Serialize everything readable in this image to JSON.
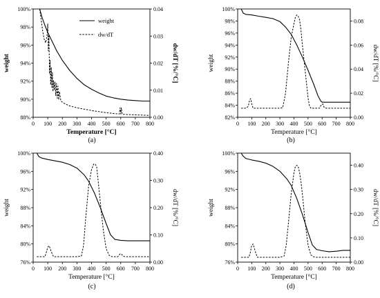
{
  "chart_data": [
    {
      "type": "line",
      "panel_label": "(a)",
      "xlabel": "Temperature [°C]",
      "ylabel": "weight",
      "y2label": "dw/dT [%/°C]",
      "xlim": [
        0,
        800
      ],
      "xticks": [
        0,
        100,
        200,
        300,
        400,
        500,
        600,
        700,
        800
      ],
      "ylim": [
        88,
        100
      ],
      "yticks": [
        88,
        90,
        92,
        94,
        96,
        98,
        100
      ],
      "ytick_suffix": "%",
      "y2lim": [
        0,
        0.04
      ],
      "y2ticks": [
        0,
        0.01,
        0.02,
        0.03,
        0.04
      ],
      "y2decimals": 2,
      "bold_labels": true,
      "legend": {
        "position": "top-right",
        "weight_label": "weight",
        "rate_label": "dw/dT"
      },
      "series": [
        {
          "name": "weight",
          "axis": "left",
          "style": "solid",
          "x": [
            45,
            60,
            80,
            100,
            130,
            160,
            200,
            250,
            300,
            350,
            400,
            450,
            500,
            550,
            600,
            650,
            700,
            750,
            800
          ],
          "y": [
            100,
            99.1,
            98.2,
            97.4,
            96.4,
            95.4,
            94.3,
            93.2,
            92.3,
            91.6,
            91.1,
            90.7,
            90.35,
            90.15,
            90.0,
            89.9,
            89.85,
            89.8,
            89.8
          ]
        },
        {
          "name": "dw/dT",
          "axis": "right",
          "style": "dashed",
          "x": [
            45,
            55,
            65,
            75,
            85,
            95,
            100,
            104,
            108,
            112,
            116,
            120,
            124,
            128,
            132,
            136,
            140,
            145,
            150,
            155,
            160,
            165,
            170,
            175,
            180,
            190,
            210,
            250,
            300,
            350,
            400,
            450,
            500,
            550,
            590,
            596,
            600,
            604,
            610,
            650,
            700,
            750,
            800
          ],
          "y": [
            0.04,
            0.036,
            0.032,
            0.029,
            0.0275,
            0.03,
            0.0345,
            0.0245,
            0.0305,
            0.016,
            0.021,
            0.012,
            0.0185,
            0.011,
            0.0165,
            0.0095,
            0.0135,
            0.01,
            0.013,
            0.008,
            0.0125,
            0.007,
            0.0115,
            0.0065,
            0.0095,
            0.006,
            0.0052,
            0.0042,
            0.0035,
            0.003,
            0.0025,
            0.0021,
            0.0017,
            0.0014,
            0.0012,
            0.0035,
            0.0012,
            0.0035,
            0.0011,
            0.001,
            0.0009,
            0.0008,
            0.0007
          ]
        }
      ]
    },
    {
      "type": "line",
      "panel_label": "(b)",
      "xlabel": "Temperature [°C]",
      "ylabel": "weight",
      "y2label": "dw/dT [%/°C]",
      "xlim": [
        0,
        800
      ],
      "xticks": [
        0,
        100,
        200,
        300,
        400,
        500,
        600,
        700,
        800
      ],
      "ylim": [
        82,
        100
      ],
      "yticks": [
        82,
        84,
        86,
        88,
        90,
        92,
        94,
        96,
        98,
        100
      ],
      "ytick_suffix": "%",
      "y2lim": [
        0,
        0.09
      ],
      "y2ticks": [
        0,
        0.02,
        0.04,
        0.06,
        0.08
      ],
      "y2decimals": 2,
      "bold_labels": false,
      "series": [
        {
          "name": "weight",
          "axis": "left",
          "style": "solid",
          "x": [
            25,
            40,
            60,
            100,
            150,
            200,
            250,
            300,
            340,
            380,
            420,
            460,
            500,
            540,
            570,
            590,
            600,
            650,
            700,
            750,
            800
          ],
          "y": [
            100,
            99.3,
            99.1,
            99.0,
            98.8,
            98.6,
            98.4,
            97.9,
            97.0,
            95.8,
            94.0,
            92.0,
            89.8,
            87.5,
            85.6,
            84.7,
            84.5,
            84.5,
            84.5,
            84.5,
            84.5
          ]
        },
        {
          "name": "dw/dT",
          "axis": "right",
          "style": "dashed",
          "x": [
            25,
            60,
            75,
            85,
            93,
            100,
            110,
            120,
            150,
            200,
            250,
            300,
            320,
            340,
            360,
            380,
            400,
            410,
            420,
            430,
            440,
            450,
            460,
            480,
            500,
            510,
            520,
            550,
            580,
            595,
            605,
            615,
            630,
            700,
            800
          ],
          "y": [
            0.0075,
            0.0075,
            0.009,
            0.0145,
            0.0155,
            0.011,
            0.0075,
            0.0075,
            0.0075,
            0.0075,
            0.0075,
            0.0075,
            0.008,
            0.02,
            0.045,
            0.066,
            0.078,
            0.083,
            0.085,
            0.084,
            0.081,
            0.072,
            0.06,
            0.038,
            0.016,
            0.0095,
            0.0075,
            0.0075,
            0.0075,
            0.0105,
            0.011,
            0.008,
            0.0075,
            0.0075,
            0.0075
          ]
        }
      ]
    },
    {
      "type": "line",
      "panel_label": "(c)",
      "xlabel": "Temperature [°C]",
      "ylabel": "weight",
      "y2label": "dw/dT [%/°C]",
      "xlim": [
        0,
        800
      ],
      "xticks": [
        0,
        100,
        200,
        300,
        400,
        500,
        600,
        700,
        800
      ],
      "ylim": [
        76,
        100
      ],
      "yticks": [
        76,
        80,
        84,
        88,
        92,
        96,
        100
      ],
      "ytick_suffix": "%",
      "y2lim": [
        0,
        0.4
      ],
      "y2ticks": [
        0,
        0.1,
        0.2,
        0.3,
        0.4
      ],
      "y2decimals": 2,
      "bold_labels": false,
      "series": [
        {
          "name": "weight",
          "axis": "left",
          "style": "solid",
          "x": [
            25,
            40,
            60,
            100,
            150,
            200,
            250,
            300,
            350,
            380,
            420,
            460,
            500,
            530,
            560,
            600,
            650,
            700,
            750,
            800
          ],
          "y": [
            100,
            99.2,
            98.9,
            98.6,
            98.3,
            98.0,
            97.5,
            96.7,
            95.2,
            93.8,
            91.2,
            88.0,
            84.5,
            82.0,
            81.0,
            80.8,
            80.7,
            80.7,
            80.7,
            80.7
          ]
        },
        {
          "name": "dw/dT",
          "axis": "right",
          "style": "dashed",
          "x": [
            25,
            80,
            90,
            100,
            110,
            120,
            130,
            140,
            200,
            300,
            330,
            345,
            360,
            380,
            400,
            415,
            425,
            435,
            445,
            460,
            480,
            500,
            520,
            540,
            580,
            595,
            605,
            615,
            630,
            700,
            800
          ],
          "y": [
            0.02,
            0.02,
            0.035,
            0.055,
            0.06,
            0.045,
            0.03,
            0.02,
            0.02,
            0.02,
            0.022,
            0.06,
            0.16,
            0.28,
            0.34,
            0.36,
            0.36,
            0.35,
            0.3,
            0.22,
            0.12,
            0.05,
            0.025,
            0.02,
            0.02,
            0.03,
            0.03,
            0.022,
            0.02,
            0.02,
            0.02
          ]
        }
      ]
    },
    {
      "type": "line",
      "panel_label": "(d)",
      "xlabel": "Temperature [°C]",
      "ylabel": "weight",
      "y2label": "dw/dT [%/°C]",
      "xlim": [
        0,
        800
      ],
      "xticks": [
        0,
        100,
        200,
        300,
        400,
        500,
        600,
        700,
        800
      ],
      "ylim": [
        76,
        100
      ],
      "yticks": [
        76,
        80,
        84,
        88,
        92,
        96,
        100
      ],
      "ytick_suffix": "%",
      "y2lim": [
        0,
        0.45
      ],
      "y2ticks": [
        0,
        0.1,
        0.2,
        0.3,
        0.4
      ],
      "y2decimals": 2,
      "bold_labels": false,
      "series": [
        {
          "name": "weight",
          "axis": "left",
          "style": "solid",
          "x": [
            25,
            40,
            60,
            100,
            150,
            200,
            250,
            300,
            350,
            380,
            420,
            460,
            500,
            530,
            560,
            600,
            650,
            700,
            750,
            800
          ],
          "y": [
            100,
            99.3,
            98.8,
            98.5,
            98.2,
            97.8,
            97.1,
            96.0,
            94.3,
            92.9,
            90.0,
            86.5,
            82.5,
            79.8,
            78.8,
            78.5,
            78.3,
            78.4,
            78.6,
            78.6
          ]
        },
        {
          "name": "dw/dT",
          "axis": "right",
          "style": "dashed",
          "x": [
            25,
            80,
            90,
            100,
            110,
            120,
            130,
            140,
            200,
            300,
            330,
            345,
            360,
            380,
            400,
            410,
            420,
            430,
            440,
            450,
            460,
            480,
            500,
            520,
            540,
            560,
            600,
            700,
            800
          ],
          "y": [
            0.02,
            0.02,
            0.04,
            0.07,
            0.075,
            0.055,
            0.035,
            0.02,
            0.02,
            0.02,
            0.025,
            0.07,
            0.16,
            0.28,
            0.37,
            0.395,
            0.4,
            0.395,
            0.37,
            0.33,
            0.28,
            0.16,
            0.07,
            0.03,
            0.022,
            0.02,
            0.02,
            0.02,
            0.02
          ]
        }
      ]
    }
  ]
}
